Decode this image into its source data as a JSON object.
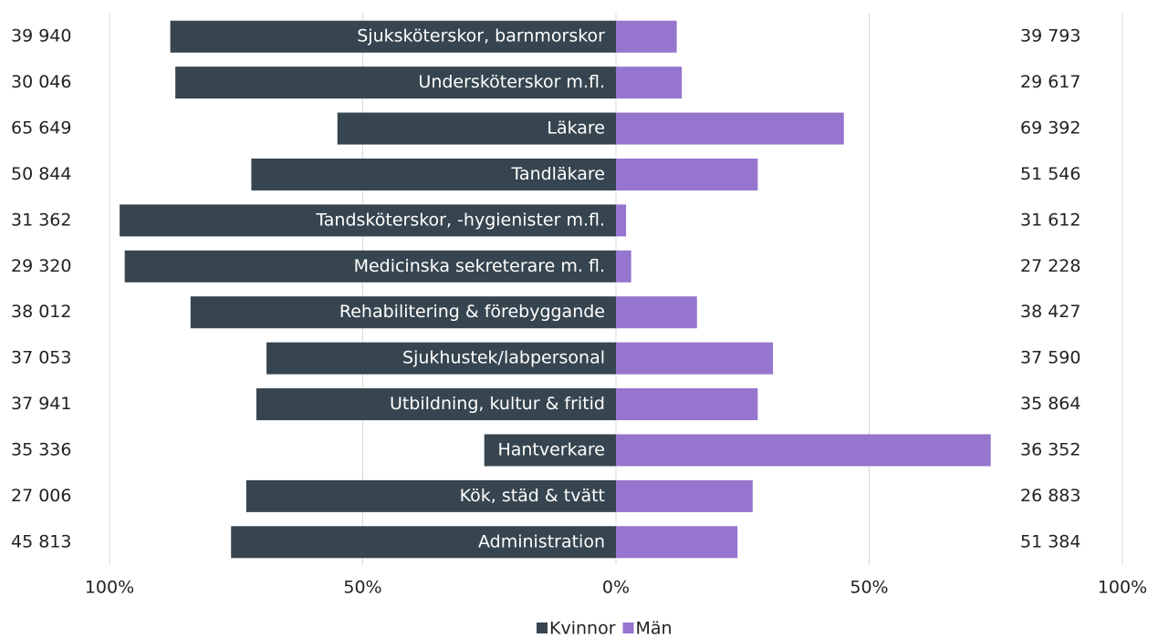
{
  "chart_data": {
    "type": "butterfly",
    "categories": [
      "Sjuksköterskor, barnmorskor",
      "Undersköterskor m.fl.",
      "Läkare",
      "Tandläkare",
      "Tandsköterskor, -hygienister m.fl.",
      "Medicinska sekreterare m. fl.",
      "Rehabilitering & förebyggande",
      "Sjukhustek/labpersonal",
      "Utbildning, kultur & fritid",
      "Hantverkare",
      "Kök, städ & tvätt",
      "Administration"
    ],
    "series": [
      {
        "name": "Kvinnor",
        "color": "#36454f",
        "values": [
          -88,
          -87,
          -55,
          -72,
          -98,
          -97,
          -84,
          -69,
          -71,
          -26,
          -73,
          -76
        ],
        "side_labels": [
          "39 940",
          "30 046",
          "65 649",
          "50 844",
          "31 362",
          "29 320",
          "38 012",
          "37 053",
          "37 941",
          "35 336",
          "27 006",
          "45 813"
        ]
      },
      {
        "name": "Män",
        "color": "#9575cd",
        "values": [
          12,
          13,
          45,
          28,
          2,
          3,
          16,
          31,
          28,
          74,
          27,
          24
        ],
        "side_labels": [
          "39 793",
          "29 617",
          "69 392",
          "51 546",
          "31 612",
          "27 228",
          "38 427",
          "37 590",
          "35 864",
          "36 352",
          "26 883",
          "51 384"
        ]
      }
    ],
    "xlim": [
      -100,
      100
    ],
    "xticks": [
      {
        "value": -100,
        "label": "100%"
      },
      {
        "value": -50,
        "label": "50%"
      },
      {
        "value": 0,
        "label": "0%"
      },
      {
        "value": 50,
        "label": "50%"
      },
      {
        "value": 100,
        "label": "100%"
      }
    ],
    "grid": true,
    "legend": "bottom"
  }
}
